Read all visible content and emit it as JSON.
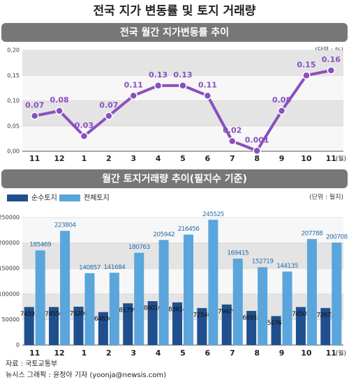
{
  "title": "전국 지가 변동률 및 토지 거래량",
  "chart_data": [
    {
      "type": "line",
      "title": "전국 월간 지가변동률 추이",
      "unit": "(단위 : %)",
      "x_unit": "(월)",
      "categories": [
        "11",
        "12",
        "1",
        "2",
        "3",
        "4",
        "5",
        "6",
        "7",
        "8",
        "9",
        "10",
        "11"
      ],
      "series": [
        {
          "color": "#8a4fc0",
          "values": [
            0.07,
            0.08,
            0.03,
            0.07,
            0.11,
            0.13,
            0.13,
            0.11,
            0.02,
            0.001,
            0.08,
            0.15,
            0.16
          ]
        }
      ],
      "ylim": [
        0,
        0.2
      ],
      "yticks": [
        {
          "value": 0,
          "label": "0,00"
        },
        {
          "value": 0.05,
          "label": "0,05"
        },
        {
          "value": 0.1,
          "label": "0,10"
        },
        {
          "value": 0.15,
          "label": "0,15"
        },
        {
          "value": 0.2,
          "label": "0,20"
        }
      ],
      "grid": true
    },
    {
      "type": "bar",
      "title": "월간 토지거래량 추이(필지수 기준)",
      "unit": "(단위 : 필지)",
      "x_unit": "(월)",
      "categories": [
        "11",
        "12",
        "1",
        "2",
        "3",
        "4",
        "5",
        "6",
        "7",
        "8",
        "9",
        "10",
        "11"
      ],
      "series": [
        {
          "name": "순수토지",
          "color": "#1f4f8e",
          "values": [
            74593,
            74556,
            75206,
            64636,
            81799,
            86010,
            83614,
            72546,
            79479,
            66918,
            56767,
            74505,
            72672
          ]
        },
        {
          "name": "전체토지",
          "color": "#5aa5db",
          "values": [
            185469,
            223804,
            140857,
            141684,
            180763,
            205942,
            216456,
            245525,
            169415,
            152719,
            144135,
            207788,
            200708
          ]
        }
      ],
      "ylim": [
        0,
        250000
      ],
      "yticks": [
        0,
        50000,
        100000,
        150000,
        200000,
        250000
      ],
      "grid": true
    }
  ],
  "footer": {
    "source": "자료 : 국토교통부",
    "credit": "뉴시스 그래픽 : 윤정아 기자 (yoonja@newsis.com)"
  }
}
